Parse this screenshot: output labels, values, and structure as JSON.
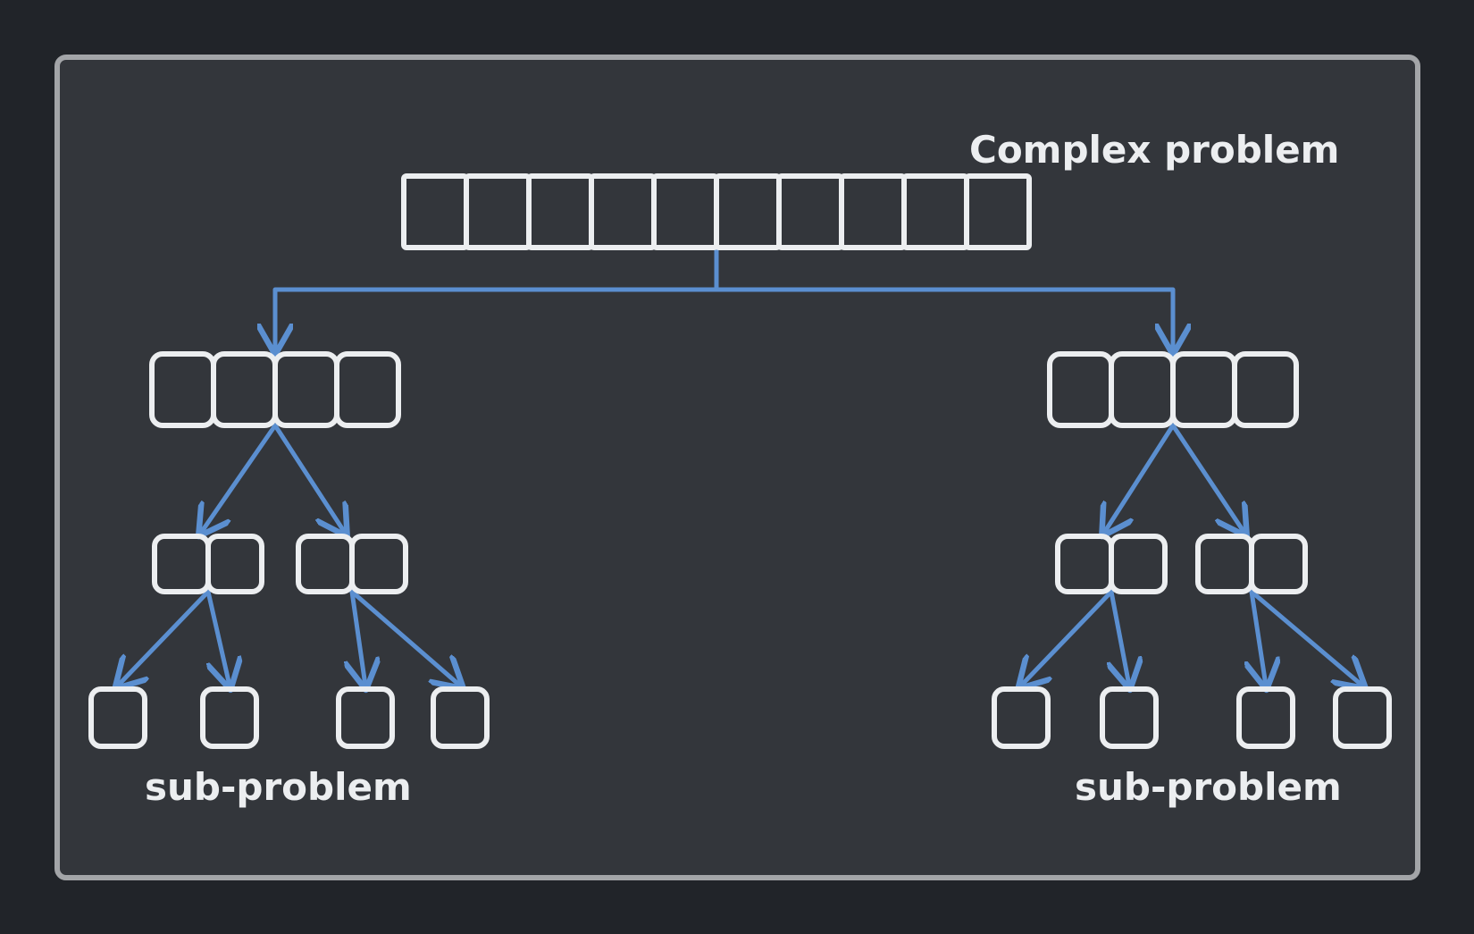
{
  "labels": {
    "root": "Complex problem",
    "left_leaves": "sub-problem",
    "right_leaves": "sub-problem"
  },
  "tree": {
    "root_cells": 10,
    "children": [
      {
        "side": "left",
        "cells": 4,
        "children": [
          {
            "cells": 2,
            "children": [
              {
                "cells": 1
              },
              {
                "cells": 1
              }
            ]
          },
          {
            "cells": 2,
            "children": [
              {
                "cells": 1
              },
              {
                "cells": 1
              }
            ]
          }
        ]
      },
      {
        "side": "right",
        "cells": 4,
        "children": [
          {
            "cells": 2,
            "children": [
              {
                "cells": 1
              },
              {
                "cells": 1
              }
            ]
          },
          {
            "cells": 2,
            "children": [
              {
                "cells": 1
              },
              {
                "cells": 1
              }
            ]
          }
        ]
      }
    ]
  },
  "colors": {
    "background": "#212429",
    "panel": "#33363b",
    "panel_border": "#a3a5a8",
    "cell_stroke": "#eceef0",
    "arrow": "#5b8fd0",
    "text": "#eceef0"
  }
}
